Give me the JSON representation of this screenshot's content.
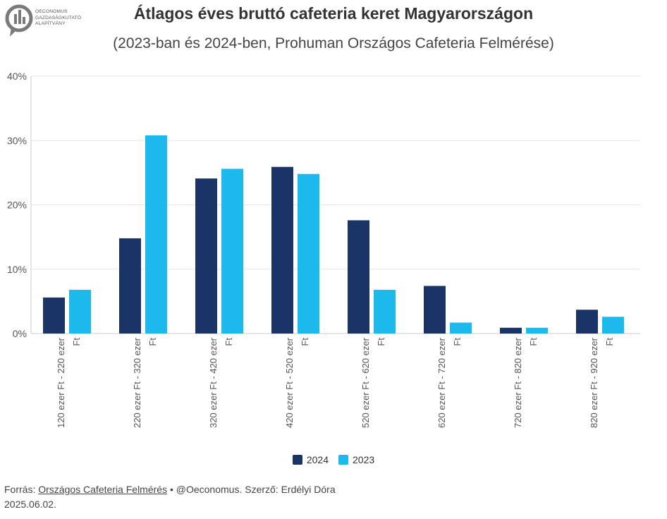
{
  "logo": {
    "lines": [
      "OECONOMUS",
      "GAZDASÁGKUTATÓ",
      "ALAPÍTVÁNY"
    ]
  },
  "title": "Átlagos éves bruttó cafeteria keret Magyarországon",
  "subtitle": "(2023-ban és 2024-ben, Prohuman Országos Cafeteria Felmérése)",
  "colors": {
    "2024": "#1b3468",
    "2023": "#1cb9ec",
    "grid": "#e6e6e6",
    "axis_text": "#555555"
  },
  "chart_data": {
    "type": "bar",
    "categories": [
      [
        "120 ezer Ft - 220 ezer",
        "Ft"
      ],
      [
        "220 ezer Ft - 320 ezer",
        "Ft"
      ],
      [
        "320 ezer Ft - 420 ezer",
        "Ft"
      ],
      [
        "420 ezer Ft - 520 ezer",
        "Ft"
      ],
      [
        "520 ezer Ft - 620 ezer",
        "Ft"
      ],
      [
        "620 ezer Ft - 720 ezer",
        "Ft"
      ],
      [
        "720 ezer Ft - 820 ezer",
        "Ft"
      ],
      [
        "820 ezer Ft - 920 ezer",
        "Ft"
      ]
    ],
    "series": [
      {
        "name": "2024",
        "values": [
          5.6,
          14.8,
          24.1,
          25.9,
          17.6,
          7.4,
          0.9,
          3.7
        ]
      },
      {
        "name": "2023",
        "values": [
          6.8,
          30.8,
          25.6,
          24.8,
          6.8,
          1.7,
          0.9,
          2.6
        ]
      }
    ],
    "y_ticks": [
      "0%",
      "10%",
      "20%",
      "30%",
      "40%"
    ],
    "ylim": [
      0,
      40
    ],
    "grid": true,
    "legend_position": "bottom"
  },
  "legend": {
    "items": [
      "2024",
      "2023"
    ]
  },
  "footer": {
    "prefix": "Forrás: ",
    "source_link": "Országos Cafeteria Felmérés",
    "suffix": " • @Oeconomus. Szerző: Erdélyi Dóra",
    "date": "2025.06.02."
  }
}
